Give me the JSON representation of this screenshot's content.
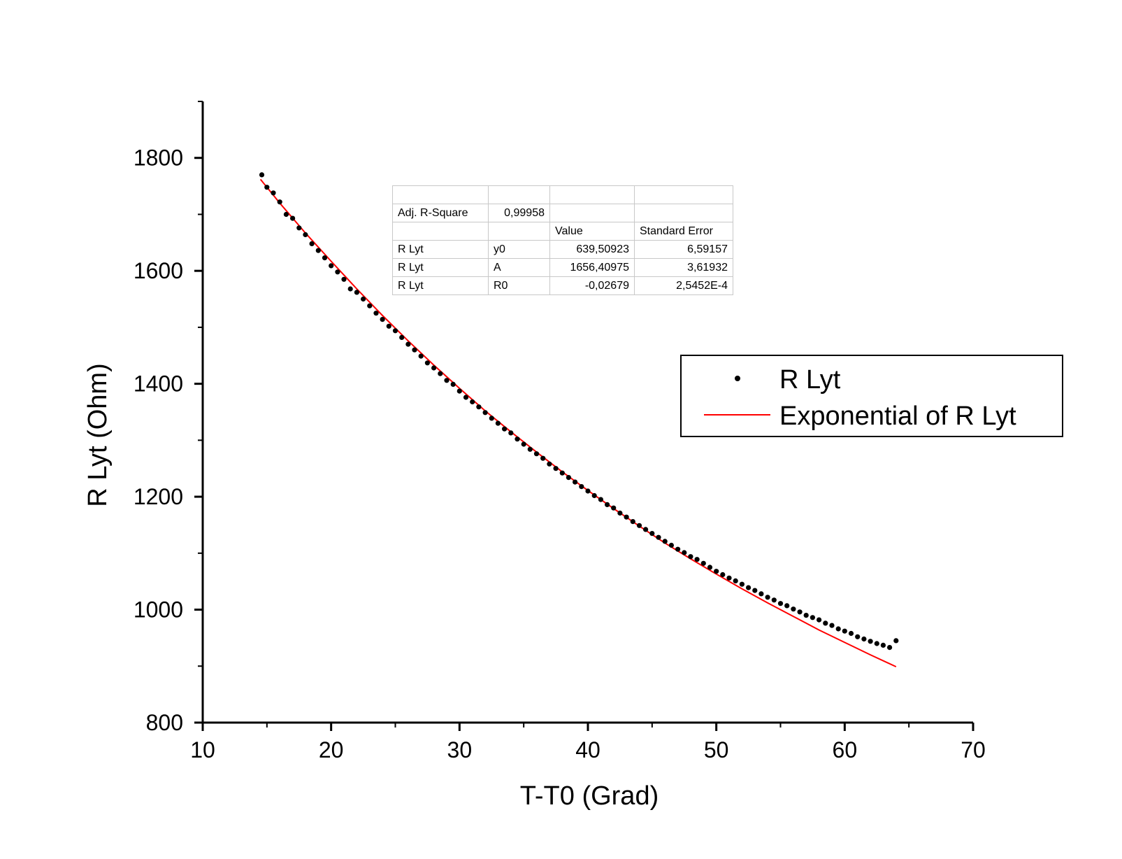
{
  "chart_data": {
    "type": "scatter",
    "xlabel": "T-T0 (Grad)",
    "ylabel": "R Lyt (Ohm)",
    "xlim": [
      10,
      70
    ],
    "ylim": [
      800,
      1900
    ],
    "x_ticks": [
      10,
      20,
      30,
      40,
      50,
      60,
      70
    ],
    "y_ticks": [
      800,
      1000,
      1200,
      1400,
      1600,
      1800
    ],
    "grid": false,
    "legend": {
      "placement": "right",
      "entries": [
        {
          "label": "R Lyt",
          "marker": "dot",
          "color": "#000000"
        },
        {
          "label": "Exponential of R Lyt",
          "marker": "line",
          "color": "#ff0000"
        }
      ]
    },
    "series": [
      {
        "name": "R Lyt",
        "kind": "scatter",
        "color": "#000000",
        "x": [
          14.6,
          15.0,
          15.5,
          16.0,
          16.5,
          17.0,
          17.5,
          18.0,
          18.5,
          19.0,
          19.5,
          20.0,
          20.5,
          21.0,
          21.5,
          22.0,
          22.5,
          23.0,
          23.5,
          24.0,
          24.5,
          25.0,
          25.5,
          26.0,
          26.5,
          27.0,
          27.5,
          28.0,
          28.5,
          29.0,
          29.5,
          30.0,
          30.5,
          31.0,
          31.5,
          32.0,
          32.5,
          33.0,
          33.5,
          34.0,
          34.5,
          35.0,
          35.5,
          36.0,
          36.5,
          37.0,
          37.5,
          38.0,
          38.5,
          39.0,
          39.5,
          40.0,
          40.5,
          41.0,
          41.5,
          42.0,
          42.5,
          43.0,
          43.5,
          44.0,
          44.5,
          45.0,
          45.5,
          46.0,
          46.5,
          47.0,
          47.5,
          48.0,
          48.5,
          49.0,
          49.5,
          50.0,
          50.5,
          51.0,
          51.5,
          52.0,
          52.5,
          53.0,
          53.5,
          54.0,
          54.5,
          55.0,
          55.5,
          56.0,
          56.5,
          57.0,
          57.5,
          58.0,
          58.5,
          59.0,
          59.5,
          60.0,
          60.5,
          61.0,
          61.5,
          62.0,
          62.5,
          63.0,
          63.5,
          64.0
        ],
        "y": [
          1770,
          1748,
          1738,
          1722,
          1700,
          1693,
          1676,
          1664,
          1648,
          1636,
          1623,
          1609,
          1598,
          1585,
          1568,
          1562,
          1550,
          1538,
          1525,
          1514,
          1502,
          1494,
          1482,
          1470,
          1460,
          1449,
          1437,
          1428,
          1418,
          1406,
          1399,
          1387,
          1376,
          1368,
          1359,
          1349,
          1339,
          1330,
          1320,
          1313,
          1302,
          1293,
          1284,
          1276,
          1268,
          1258,
          1250,
          1242,
          1234,
          1226,
          1218,
          1210,
          1202,
          1195,
          1186,
          1180,
          1171,
          1164,
          1156,
          1149,
          1142,
          1135,
          1128,
          1121,
          1114,
          1107,
          1101,
          1094,
          1089,
          1082,
          1075,
          1068,
          1062,
          1056,
          1051,
          1045,
          1039,
          1034,
          1028,
          1022,
          1017,
          1011,
          1007,
          1001,
          996,
          990,
          986,
          982,
          976,
          972,
          966,
          962,
          958,
          952,
          948,
          944,
          940,
          937,
          933,
          945
        ]
      },
      {
        "name": "Exponential of R Lyt",
        "kind": "line",
        "color": "#ff0000",
        "x": [
          14.5,
          16,
          18,
          20,
          22,
          24,
          26,
          28,
          30,
          32,
          34,
          36,
          38,
          40,
          42,
          44,
          46,
          48,
          50,
          52,
          54,
          56,
          58,
          60,
          62,
          64
        ],
        "y": [
          1762,
          1720,
          1667,
          1617,
          1568,
          1521,
          1476,
          1433,
          1392,
          1352,
          1315,
          1279,
          1244,
          1211,
          1179,
          1148,
          1118,
          1090,
          1063,
          1037,
          1012,
          988,
          964,
          942,
          920,
          899
        ]
      }
    ]
  },
  "fit_table": {
    "rows": [
      [
        "",
        "",
        "",
        ""
      ],
      [
        "Adj. R-Square",
        "0,99958",
        "",
        ""
      ],
      [
        "",
        "",
        "Value",
        "Standard Error"
      ],
      [
        "R Lyt",
        "y0",
        "639,50923",
        "6,59157"
      ],
      [
        "R Lyt",
        "A",
        "1656,40975",
        "3,61932"
      ],
      [
        "R Lyt",
        "R0",
        "-0,02679",
        "2,5452E-4"
      ]
    ]
  }
}
